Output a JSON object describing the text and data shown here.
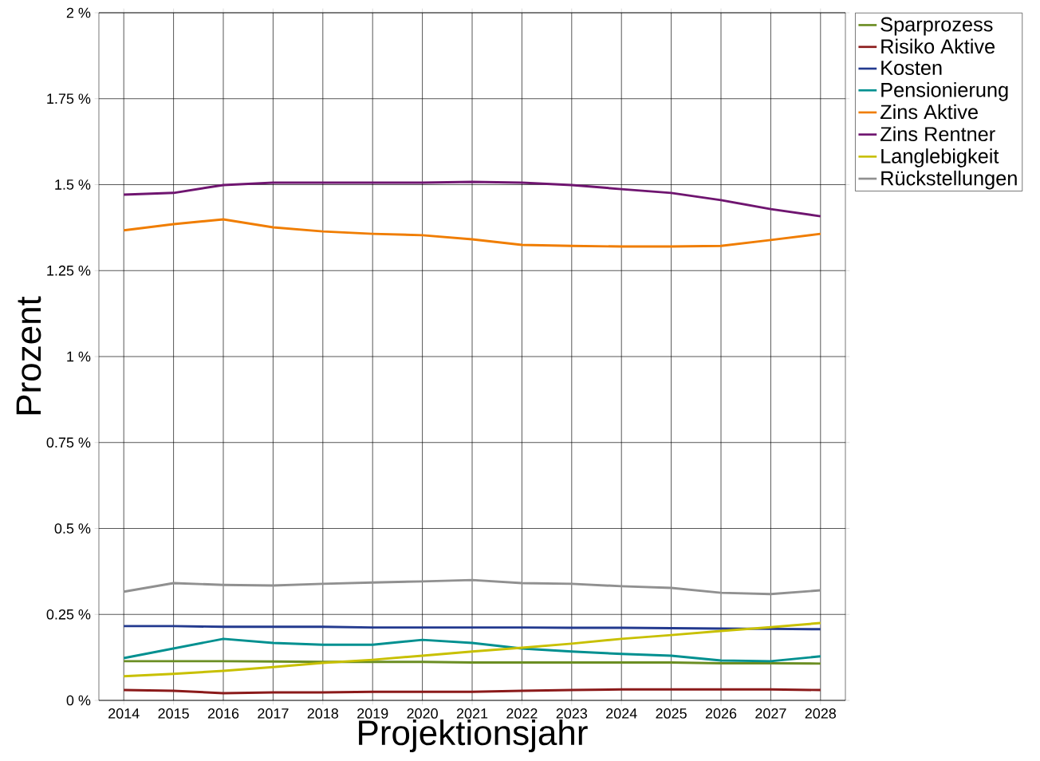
{
  "chart_data": {
    "type": "line",
    "xlabel": "Projektionsjahr",
    "ylabel": "Prozent",
    "categories": [
      "2014",
      "2015",
      "2016",
      "2017",
      "2018",
      "2019",
      "2020",
      "2021",
      "2022",
      "2023",
      "2024",
      "2025",
      "2026",
      "2027",
      "2028"
    ],
    "ylim": [
      0,
      2
    ],
    "yticks": [
      {
        "value": 0,
        "label": "0 %"
      },
      {
        "value": 0.25,
        "label": "0.25 %"
      },
      {
        "value": 0.5,
        "label": "0.5 %"
      },
      {
        "value": 0.75,
        "label": "0.75 %"
      },
      {
        "value": 1,
        "label": "1 %"
      },
      {
        "value": 1.25,
        "label": "1.25 %"
      },
      {
        "value": 1.5,
        "label": "1.5 %"
      },
      {
        "value": 1.75,
        "label": "1.75 %"
      },
      {
        "value": 2,
        "label": "2 %"
      }
    ],
    "grid": true,
    "legend": "right",
    "marker": "none",
    "line_style": "solid",
    "series": [
      {
        "name": "Sparprozess",
        "color": "#6b8e23",
        "values": [
          0.114,
          0.114,
          0.114,
          0.113,
          0.112,
          0.112,
          0.112,
          0.11,
          0.11,
          0.11,
          0.11,
          0.11,
          0.108,
          0.108,
          0.107
        ]
      },
      {
        "name": "Risiko Aktive",
        "color": "#8b1a1a",
        "values": [
          0.03,
          0.028,
          0.021,
          0.023,
          0.023,
          0.025,
          0.025,
          0.025,
          0.028,
          0.03,
          0.032,
          0.032,
          0.032,
          0.032,
          0.03
        ]
      },
      {
        "name": "Kosten",
        "color": "#233a8f",
        "values": [
          0.216,
          0.216,
          0.214,
          0.214,
          0.214,
          0.212,
          0.212,
          0.212,
          0.212,
          0.211,
          0.211,
          0.21,
          0.209,
          0.208,
          0.207
        ]
      },
      {
        "name": "Pensionierung",
        "color": "#009090",
        "values": [
          0.123,
          0.151,
          0.179,
          0.167,
          0.162,
          0.162,
          0.176,
          0.167,
          0.151,
          0.142,
          0.135,
          0.13,
          0.116,
          0.114,
          0.128
        ]
      },
      {
        "name": "Zins Aktive",
        "color": "#f07d00",
        "values": [
          1.367,
          1.385,
          1.399,
          1.376,
          1.364,
          1.357,
          1.353,
          1.341,
          1.325,
          1.322,
          1.32,
          1.32,
          1.322,
          1.339,
          1.357
        ]
      },
      {
        "name": "Zins Rentner",
        "color": "#6f1570",
        "values": [
          1.471,
          1.476,
          1.499,
          1.506,
          1.506,
          1.506,
          1.506,
          1.508,
          1.506,
          1.499,
          1.487,
          1.476,
          1.455,
          1.429,
          1.408
        ]
      },
      {
        "name": "Langlebigkeit",
        "color": "#c8c000",
        "values": [
          0.07,
          0.077,
          0.086,
          0.097,
          0.109,
          0.118,
          0.13,
          0.142,
          0.153,
          0.165,
          0.179,
          0.19,
          0.202,
          0.213,
          0.225
        ]
      },
      {
        "name": "Rückstellungen",
        "color": "#909090",
        "values": [
          0.316,
          0.341,
          0.336,
          0.334,
          0.339,
          0.343,
          0.346,
          0.35,
          0.341,
          0.339,
          0.332,
          0.327,
          0.313,
          0.309,
          0.32
        ]
      }
    ]
  }
}
